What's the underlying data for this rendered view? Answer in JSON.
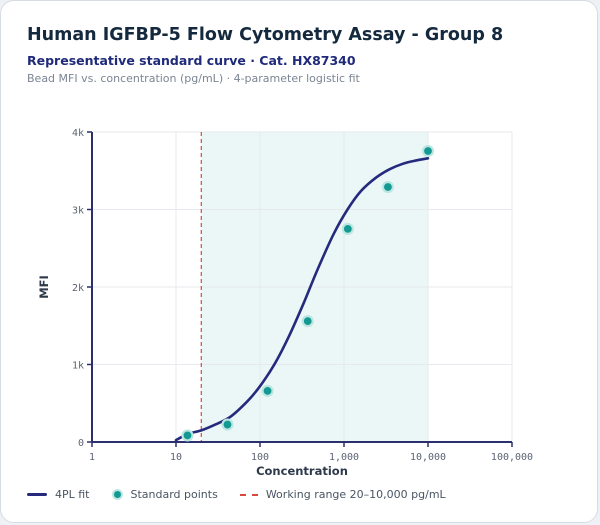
{
  "header": {
    "title": "Human IGFBP-5 Flow Cytometry Assay - Group 8",
    "subtitle": "Representative standard curve · Cat. HX87340",
    "description": "Bead MFI vs. concentration (pg/mL) · 4-parameter logistic fit"
  },
  "legend": {
    "fit_label": "4PL fit",
    "points_label": "Standard points",
    "range_label": "Working range 20–10,000 pg/mL"
  },
  "colors": {
    "curve": "#262a7d",
    "points": "#129a92",
    "point_ring": "#bde6e2",
    "range_fill": "#e6f5f5",
    "lod_line": "#d94a3c",
    "axis": "#2a2f6e",
    "grid": "#e6e9ee"
  },
  "chart_data": {
    "type": "scatter",
    "xlabel": "Concentration",
    "ylabel": "MFI",
    "x_scale": "log",
    "xlim": [
      1,
      100000
    ],
    "ylim": [
      0,
      4000
    ],
    "x_ticks": [
      1,
      10,
      100,
      1000,
      10000,
      100000
    ],
    "x_tick_labels": [
      "1",
      "10",
      "100",
      "1,000",
      "10,000",
      "100,000"
    ],
    "y_ticks": [
      0,
      1000,
      2000,
      3000,
      4000
    ],
    "y_tick_labels": [
      "0",
      "1k",
      "2k",
      "3k",
      "4k"
    ],
    "grid": true,
    "working_range": [
      20,
      10000
    ],
    "series": [
      {
        "name": "Standard points",
        "kind": "points",
        "x": [
          13.7,
          41,
          123,
          370,
          1111,
          3333
        ],
        "y": [
          85,
          225,
          660,
          1560,
          2750,
          3290
        ]
      },
      {
        "name": "4PL fit",
        "kind": "curve",
        "x": [
          10,
          14,
          20,
          30,
          45,
          70,
          100,
          150,
          220,
          330,
          500,
          750,
          1100,
          1600,
          2400,
          3500,
          5000,
          7000,
          10000
        ],
        "y": [
          25,
          105,
          150,
          230,
          330,
          520,
          720,
          1010,
          1360,
          1790,
          2260,
          2680,
          3000,
          3240,
          3410,
          3520,
          3590,
          3630,
          3660
        ]
      },
      {
        "name": "Standard point",
        "kind": "points",
        "x": [
          10000
        ],
        "y": [
          3755
        ]
      }
    ]
  }
}
